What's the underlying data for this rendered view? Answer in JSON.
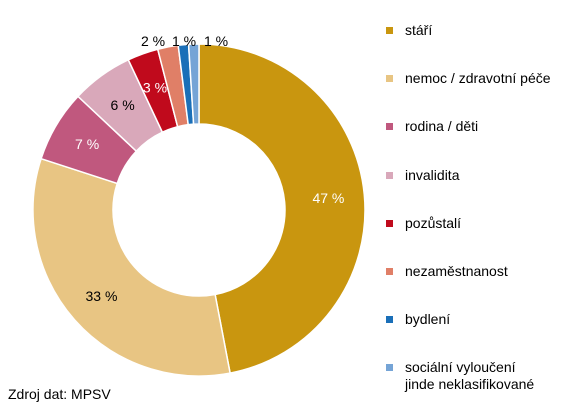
{
  "chart_data": {
    "type": "pie",
    "donut": true,
    "categories": [
      "stáří",
      "nemoc / zdravotní péče",
      "rodina / děti",
      "invalidita",
      "pozůstalí",
      "nezaměstnanost",
      "bydlení",
      "sociální vyloučení jinde neklasifikované"
    ],
    "values": [
      47,
      33,
      7,
      6,
      3,
      2,
      1,
      1
    ],
    "value_labels": [
      "47 %",
      "33 %",
      "7 %",
      "6 %",
      "3 %",
      "2 %",
      "1 %",
      "1 %"
    ],
    "colors": [
      "#C9960F",
      "#E8C583",
      "#C0587E",
      "#D9A8BA",
      "#C00A1C",
      "#E07F67",
      "#1A6FB8",
      "#75A4D6"
    ],
    "label_colors": [
      "#ffffff",
      "#000000",
      "#ffffff",
      "#000000",
      "#ffffff",
      "#000000",
      "#000000",
      "#000000"
    ],
    "legend_placement": "right"
  },
  "legend": {
    "items": [
      [
        "stáří"
      ],
      [
        "nemoc / zdravotní péče"
      ],
      [
        "rodina / děti"
      ],
      [
        "invalidita"
      ],
      [
        "pozůstalí"
      ],
      [
        "nezaměstnanost"
      ],
      [
        "bydlení"
      ],
      [
        "sociální vyloučení",
        "jinde neklasifikované"
      ]
    ]
  },
  "source": "Zdroj dat: MPSV"
}
